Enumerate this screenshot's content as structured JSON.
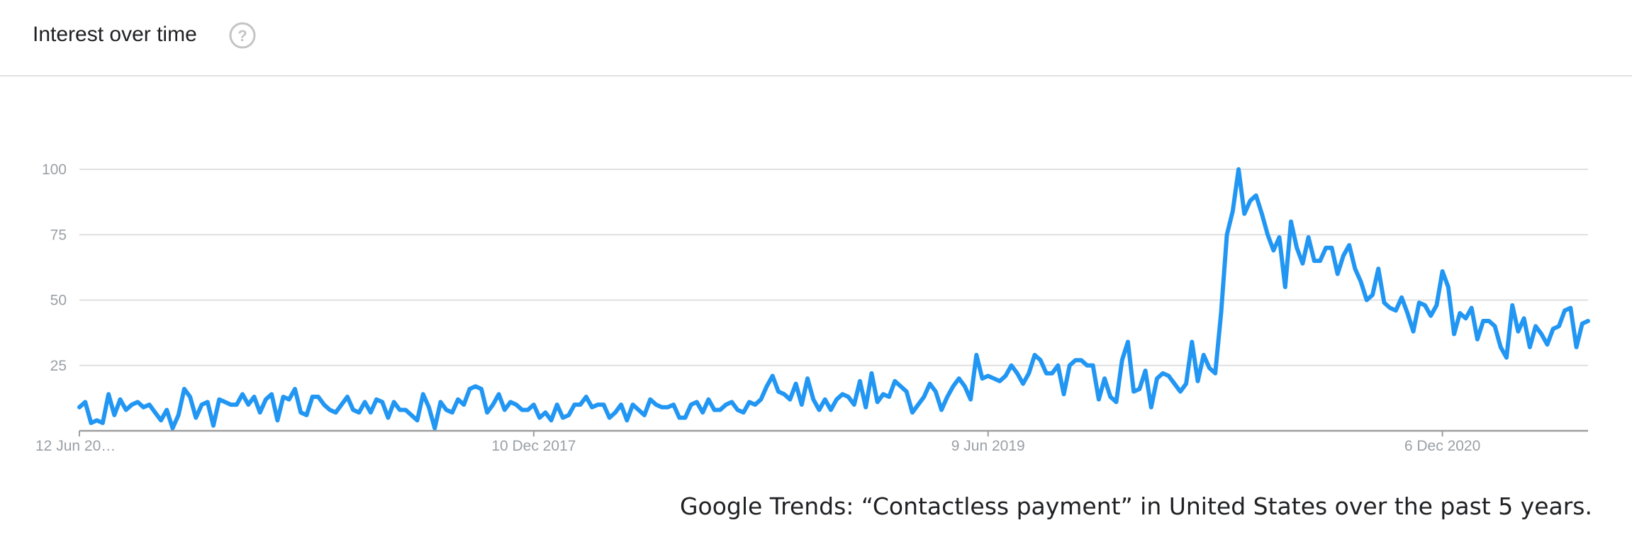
{
  "header": {
    "title": "Interest over time",
    "help_icon": "help-circle-icon"
  },
  "chart_data": {
    "type": "line",
    "ylim": [
      0,
      100
    ],
    "yticks": [
      25,
      50,
      75,
      100
    ],
    "xtick_labels": [
      "12 Jun 20…",
      "10 Dec 2017",
      "9 Jun 2019",
      "6 Dec 2020"
    ],
    "xtick_weeks": [
      0,
      78,
      156,
      234
    ],
    "color": "#2196f3",
    "series": [
      {
        "values": [
          9,
          11,
          3,
          4,
          3,
          14,
          6,
          12,
          8,
          10,
          11,
          9,
          10,
          7,
          4,
          8,
          1,
          6,
          16,
          13,
          5,
          10,
          11,
          2,
          12,
          11,
          10,
          10,
          14,
          10,
          13,
          7,
          12,
          14,
          4,
          13,
          12,
          16,
          7,
          6,
          13,
          13,
          10,
          8,
          7,
          10,
          13,
          8,
          7,
          11,
          7,
          12,
          11,
          5,
          11,
          8,
          8,
          6,
          4,
          14,
          9,
          1,
          11,
          8,
          7,
          12,
          10,
          16,
          17,
          16,
          7,
          10,
          14,
          8,
          11,
          10,
          8,
          8,
          10,
          5,
          7,
          4,
          10,
          5,
          6,
          10,
          10,
          13,
          9,
          10,
          10,
          5,
          7,
          10,
          4,
          10,
          8,
          6,
          12,
          10,
          9,
          9,
          10,
          5,
          5,
          10,
          11,
          7,
          12,
          8,
          8,
          10,
          11,
          8,
          7,
          11,
          10,
          12,
          17,
          21,
          15,
          14,
          12,
          18,
          10,
          20,
          12,
          8,
          12,
          8,
          12,
          14,
          13,
          10,
          19,
          9,
          22,
          11,
          14,
          13,
          19,
          17,
          15,
          7,
          10,
          13,
          18,
          15,
          8,
          13,
          17,
          20,
          17,
          12,
          29,
          20,
          21,
          20,
          19,
          21,
          25,
          22,
          18,
          22,
          29,
          27,
          22,
          22,
          25,
          14,
          25,
          27,
          27,
          25,
          25,
          12,
          20,
          13,
          11,
          27,
          34,
          15,
          16,
          23,
          9,
          20,
          22,
          21,
          18,
          15,
          18,
          34,
          19,
          29,
          24,
          22,
          45,
          75,
          84,
          100,
          83,
          88,
          90,
          83,
          75,
          69,
          74,
          55,
          80,
          70,
          64,
          74,
          65,
          65,
          70,
          70,
          60,
          67,
          71,
          62,
          57,
          50,
          52,
          62,
          49,
          47,
          46,
          51,
          45,
          38,
          49,
          48,
          44,
          48,
          61,
          55,
          37,
          45,
          43,
          47,
          35,
          42,
          42,
          40,
          32,
          28,
          48,
          38,
          43,
          32,
          40,
          37,
          33,
          39,
          40,
          46,
          47,
          32,
          41,
          42
        ]
      }
    ]
  },
  "caption": "Google Trends: “Contactless payment” in United States over the past 5 years."
}
